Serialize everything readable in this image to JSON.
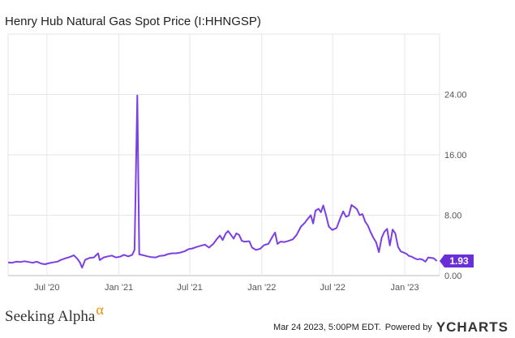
{
  "header": {
    "title": "Henry Hub Natural Gas Spot Price (I:HHNGSP)"
  },
  "footer": {
    "brand": "Seeking Alpha",
    "brand_symbol": "α",
    "timestamp": "Mar 24 2023, 5:00PM EDT.",
    "powered_by": "Powered by",
    "provider": "YCHARTS",
    "provider_y": "Y"
  },
  "colors": {
    "line": "#7b3fe4",
    "label_bg": "#6a2fd6",
    "grid": "#e6e6e6",
    "brand_accent": "#f08c00"
  },
  "chart_data": {
    "type": "line",
    "title": "Henry Hub Natural Gas Spot Price (I:HHNGSP)",
    "xlabel": "",
    "ylabel": "",
    "ylim": [
      0,
      32
    ],
    "y_ticks": [
      0,
      8,
      16,
      24
    ],
    "y_tick_labels": [
      "0.00",
      "8.00",
      "16.00",
      "24.00"
    ],
    "x_ticks": [
      "2020-07-01",
      "2021-01-01",
      "2021-07-01",
      "2022-01-01",
      "2022-07-01",
      "2023-01-01"
    ],
    "x_tick_labels": [
      "Jul '20",
      "Jan '21",
      "Jul '21",
      "Jan '22",
      "Jul '22",
      "Jan '23"
    ],
    "last_value_label": "1.93",
    "grid": true,
    "series": [
      {
        "values": [
          [
            "2020-03-24",
            1.75
          ],
          [
            "2020-04-03",
            1.7
          ],
          [
            "2020-04-14",
            1.85
          ],
          [
            "2020-04-24",
            1.8
          ],
          [
            "2020-05-05",
            1.9
          ],
          [
            "2020-05-15",
            1.8
          ],
          [
            "2020-05-26",
            1.7
          ],
          [
            "2020-06-05",
            1.85
          ],
          [
            "2020-06-16",
            1.6
          ],
          [
            "2020-06-26",
            1.5
          ],
          [
            "2020-07-07",
            1.65
          ],
          [
            "2020-07-17",
            1.75
          ],
          [
            "2020-07-28",
            1.85
          ],
          [
            "2020-08-07",
            2.1
          ],
          [
            "2020-08-18",
            2.3
          ],
          [
            "2020-08-28",
            2.45
          ],
          [
            "2020-09-08",
            2.7
          ],
          [
            "2020-09-18",
            2.15
          ],
          [
            "2020-09-24",
            1.7
          ],
          [
            "2020-09-29",
            1.05
          ],
          [
            "2020-10-07",
            2.1
          ],
          [
            "2020-10-19",
            2.35
          ],
          [
            "2020-10-29",
            2.4
          ],
          [
            "2020-11-09",
            2.95
          ],
          [
            "2020-11-13",
            2.05
          ],
          [
            "2020-11-23",
            2.4
          ],
          [
            "2020-12-04",
            2.55
          ],
          [
            "2020-12-14",
            2.65
          ],
          [
            "2020-12-24",
            2.4
          ],
          [
            "2021-01-04",
            2.5
          ],
          [
            "2021-01-14",
            2.75
          ],
          [
            "2021-01-25",
            2.55
          ],
          [
            "2021-02-04",
            2.75
          ],
          [
            "2021-02-10",
            3.4
          ],
          [
            "2021-02-17",
            23.86
          ],
          [
            "2021-02-22",
            2.8
          ],
          [
            "2021-03-05",
            2.7
          ],
          [
            "2021-03-15",
            2.55
          ],
          [
            "2021-03-25",
            2.45
          ],
          [
            "2021-04-05",
            2.4
          ],
          [
            "2021-04-15",
            2.6
          ],
          [
            "2021-04-26",
            2.65
          ],
          [
            "2021-05-06",
            2.85
          ],
          [
            "2021-05-17",
            2.95
          ],
          [
            "2021-05-27",
            2.95
          ],
          [
            "2021-06-07",
            3.05
          ],
          [
            "2021-06-17",
            3.2
          ],
          [
            "2021-06-28",
            3.5
          ],
          [
            "2021-07-08",
            3.6
          ],
          [
            "2021-07-19",
            3.8
          ],
          [
            "2021-07-29",
            3.95
          ],
          [
            "2021-08-09",
            4.1
          ],
          [
            "2021-08-19",
            3.7
          ],
          [
            "2021-08-30",
            4.2
          ],
          [
            "2021-09-09",
            4.9
          ],
          [
            "2021-09-16",
            5.3
          ],
          [
            "2021-09-23",
            4.7
          ],
          [
            "2021-10-01",
            5.6
          ],
          [
            "2021-10-07",
            5.9
          ],
          [
            "2021-10-14",
            5.4
          ],
          [
            "2021-10-21",
            4.9
          ],
          [
            "2021-10-28",
            5.6
          ],
          [
            "2021-11-04",
            5.4
          ],
          [
            "2021-11-11",
            4.6
          ],
          [
            "2021-11-18",
            4.5
          ],
          [
            "2021-11-30",
            4.55
          ],
          [
            "2021-12-07",
            3.7
          ],
          [
            "2021-12-17",
            3.4
          ],
          [
            "2021-12-28",
            3.55
          ],
          [
            "2022-01-07",
            4.05
          ],
          [
            "2022-01-18",
            4.2
          ],
          [
            "2022-01-28",
            5.15
          ],
          [
            "2022-02-04",
            5.7
          ],
          [
            "2022-02-10",
            4.2
          ],
          [
            "2022-02-18",
            4.5
          ],
          [
            "2022-02-28",
            4.45
          ],
          [
            "2022-03-10",
            4.6
          ],
          [
            "2022-03-21",
            4.8
          ],
          [
            "2022-03-31",
            5.4
          ],
          [
            "2022-04-11",
            6.5
          ],
          [
            "2022-04-21",
            7.0
          ],
          [
            "2022-04-28",
            7.5
          ],
          [
            "2022-05-06",
            8.0
          ],
          [
            "2022-05-12",
            6.9
          ],
          [
            "2022-05-18",
            8.6
          ],
          [
            "2022-05-26",
            8.85
          ],
          [
            "2022-06-01",
            8.4
          ],
          [
            "2022-06-07",
            9.3
          ],
          [
            "2022-06-14",
            8.0
          ],
          [
            "2022-06-21",
            6.5
          ],
          [
            "2022-06-30",
            6.05
          ],
          [
            "2022-07-11",
            6.3
          ],
          [
            "2022-07-21",
            7.7
          ],
          [
            "2022-07-28",
            8.5
          ],
          [
            "2022-08-04",
            7.8
          ],
          [
            "2022-08-11",
            7.95
          ],
          [
            "2022-08-18",
            9.35
          ],
          [
            "2022-08-25",
            9.1
          ],
          [
            "2022-09-01",
            8.8
          ],
          [
            "2022-09-08",
            8.0
          ],
          [
            "2022-09-15",
            8.15
          ],
          [
            "2022-09-22",
            7.15
          ],
          [
            "2022-09-29",
            6.6
          ],
          [
            "2022-10-06",
            5.75
          ],
          [
            "2022-10-13",
            5.0
          ],
          [
            "2022-10-20",
            4.4
          ],
          [
            "2022-10-27",
            3.1
          ],
          [
            "2022-11-03",
            5.0
          ],
          [
            "2022-11-10",
            5.8
          ],
          [
            "2022-11-17",
            6.2
          ],
          [
            "2022-11-24",
            4.0
          ],
          [
            "2022-12-01",
            6.1
          ],
          [
            "2022-12-08",
            5.6
          ],
          [
            "2022-12-15",
            3.8
          ],
          [
            "2022-12-22",
            3.2
          ],
          [
            "2022-12-29",
            3.05
          ],
          [
            "2023-01-05",
            2.9
          ],
          [
            "2023-01-12",
            2.6
          ],
          [
            "2023-01-19",
            2.5
          ],
          [
            "2023-01-26",
            2.3
          ],
          [
            "2023-02-02",
            2.15
          ],
          [
            "2023-02-09",
            2.2
          ],
          [
            "2023-02-16",
            2.1
          ],
          [
            "2023-02-23",
            1.85
          ],
          [
            "2023-03-02",
            2.4
          ],
          [
            "2023-03-09",
            2.35
          ],
          [
            "2023-03-16",
            2.3
          ],
          [
            "2023-03-24",
            1.93
          ]
        ]
      }
    ]
  }
}
